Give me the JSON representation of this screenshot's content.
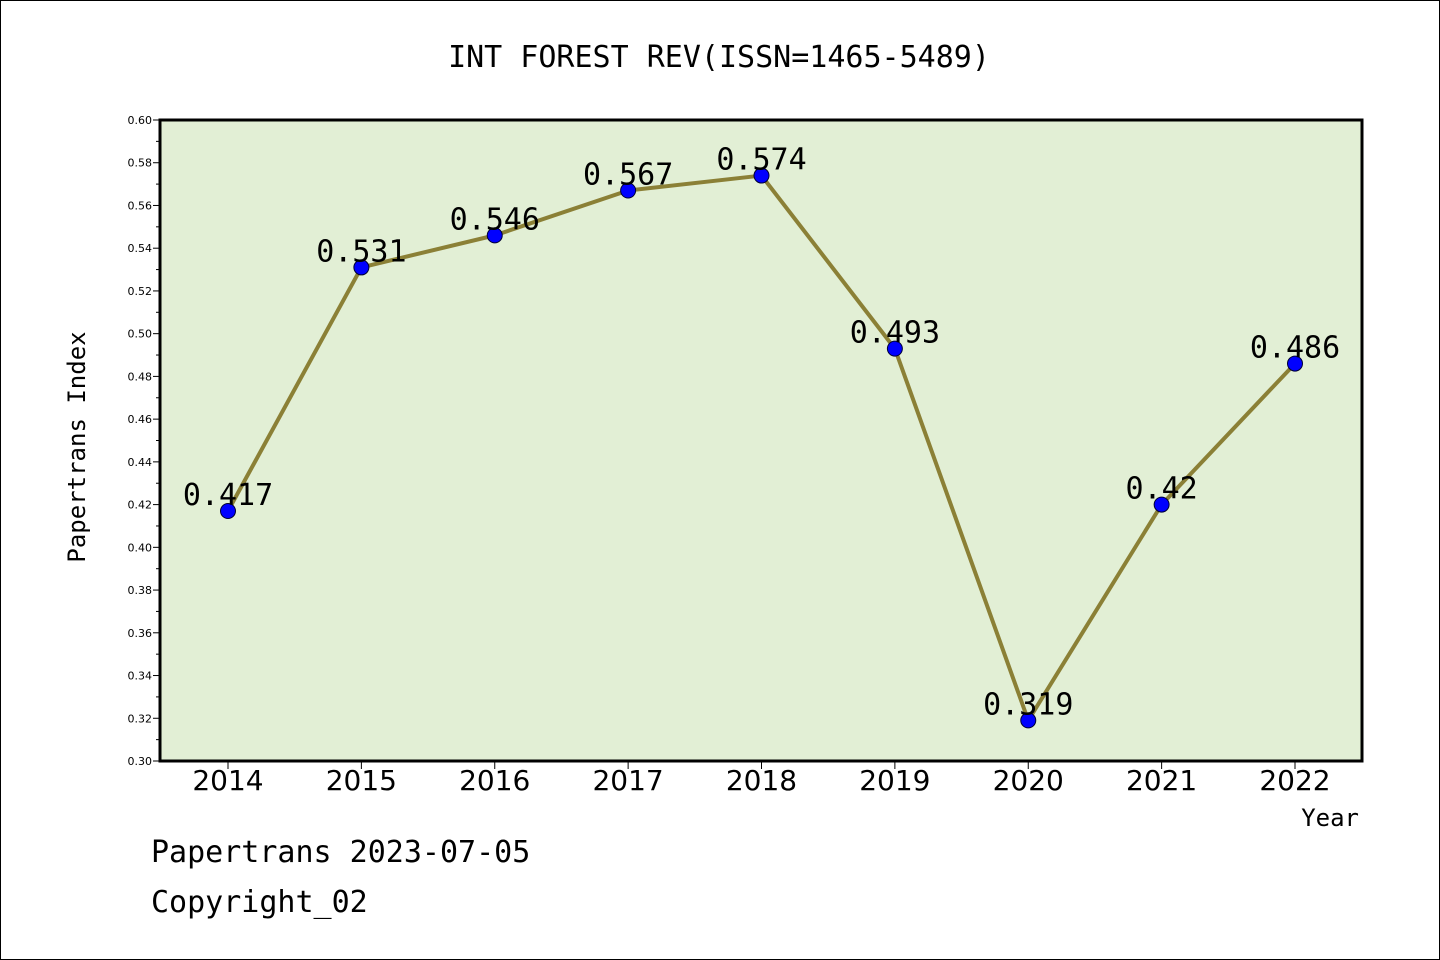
{
  "chart_data": {
    "type": "line",
    "title": "INT FOREST REV(ISSN=1465-5489)",
    "xlabel": "Year",
    "ylabel": "Papertrans Index",
    "categories": [
      "2014",
      "2015",
      "2016",
      "2017",
      "2018",
      "2019",
      "2020",
      "2021",
      "2022"
    ],
    "values": [
      0.417,
      0.531,
      0.546,
      0.567,
      0.574,
      0.493,
      0.319,
      0.42,
      0.486
    ],
    "data_labels": [
      "0.417",
      "0.531",
      "0.546",
      "0.567",
      "0.574",
      "0.493",
      "0.319",
      "0.42",
      "0.486"
    ],
    "ylim": [
      0.3,
      0.6
    ],
    "yticks": [
      "0.30",
      "0.32",
      "0.34",
      "0.36",
      "0.38",
      "0.40",
      "0.42",
      "0.44",
      "0.46",
      "0.48",
      "0.50",
      "0.52",
      "0.54",
      "0.56",
      "0.58",
      "0.60"
    ],
    "grid": false,
    "colors": {
      "plot_background": "#e2efd5",
      "line": "#8b8036",
      "marker": "#0000ff"
    }
  },
  "footer": {
    "line1": "Papertrans 2023-07-05",
    "line2": "Copyright_02"
  }
}
